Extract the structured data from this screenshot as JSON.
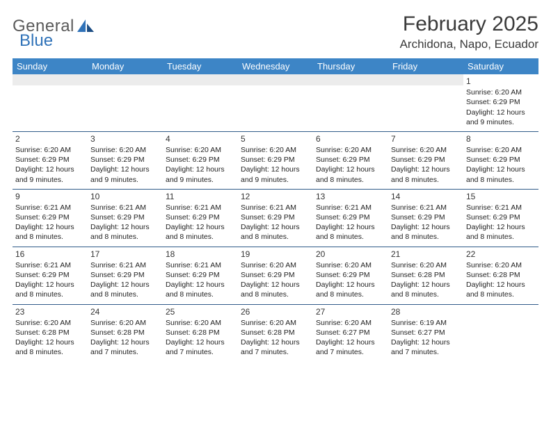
{
  "logo": {
    "word1": "General",
    "word2": "Blue"
  },
  "title": "February 2025",
  "location": "Archidona, Napo, Ecuador",
  "colors": {
    "header_bg": "#3d85c6",
    "header_text": "#ffffff",
    "rule": "#2f5a88",
    "gray_band": "#ececec",
    "logo_gray": "#5a5a5a",
    "logo_blue": "#2f72b8"
  },
  "weekday_labels": [
    "Sunday",
    "Monday",
    "Tuesday",
    "Wednesday",
    "Thursday",
    "Friday",
    "Saturday"
  ],
  "weeks": [
    [
      null,
      null,
      null,
      null,
      null,
      null,
      {
        "n": "1",
        "sr": "6:20 AM",
        "ss": "6:29 PM",
        "d": "12 hours and 9 minutes."
      }
    ],
    [
      {
        "n": "2",
        "sr": "6:20 AM",
        "ss": "6:29 PM",
        "d": "12 hours and 9 minutes."
      },
      {
        "n": "3",
        "sr": "6:20 AM",
        "ss": "6:29 PM",
        "d": "12 hours and 9 minutes."
      },
      {
        "n": "4",
        "sr": "6:20 AM",
        "ss": "6:29 PM",
        "d": "12 hours and 9 minutes."
      },
      {
        "n": "5",
        "sr": "6:20 AM",
        "ss": "6:29 PM",
        "d": "12 hours and 9 minutes."
      },
      {
        "n": "6",
        "sr": "6:20 AM",
        "ss": "6:29 PM",
        "d": "12 hours and 8 minutes."
      },
      {
        "n": "7",
        "sr": "6:20 AM",
        "ss": "6:29 PM",
        "d": "12 hours and 8 minutes."
      },
      {
        "n": "8",
        "sr": "6:20 AM",
        "ss": "6:29 PM",
        "d": "12 hours and 8 minutes."
      }
    ],
    [
      {
        "n": "9",
        "sr": "6:21 AM",
        "ss": "6:29 PM",
        "d": "12 hours and 8 minutes."
      },
      {
        "n": "10",
        "sr": "6:21 AM",
        "ss": "6:29 PM",
        "d": "12 hours and 8 minutes."
      },
      {
        "n": "11",
        "sr": "6:21 AM",
        "ss": "6:29 PM",
        "d": "12 hours and 8 minutes."
      },
      {
        "n": "12",
        "sr": "6:21 AM",
        "ss": "6:29 PM",
        "d": "12 hours and 8 minutes."
      },
      {
        "n": "13",
        "sr": "6:21 AM",
        "ss": "6:29 PM",
        "d": "12 hours and 8 minutes."
      },
      {
        "n": "14",
        "sr": "6:21 AM",
        "ss": "6:29 PM",
        "d": "12 hours and 8 minutes."
      },
      {
        "n": "15",
        "sr": "6:21 AM",
        "ss": "6:29 PM",
        "d": "12 hours and 8 minutes."
      }
    ],
    [
      {
        "n": "16",
        "sr": "6:21 AM",
        "ss": "6:29 PM",
        "d": "12 hours and 8 minutes."
      },
      {
        "n": "17",
        "sr": "6:21 AM",
        "ss": "6:29 PM",
        "d": "12 hours and 8 minutes."
      },
      {
        "n": "18",
        "sr": "6:21 AM",
        "ss": "6:29 PM",
        "d": "12 hours and 8 minutes."
      },
      {
        "n": "19",
        "sr": "6:20 AM",
        "ss": "6:29 PM",
        "d": "12 hours and 8 minutes."
      },
      {
        "n": "20",
        "sr": "6:20 AM",
        "ss": "6:29 PM",
        "d": "12 hours and 8 minutes."
      },
      {
        "n": "21",
        "sr": "6:20 AM",
        "ss": "6:28 PM",
        "d": "12 hours and 8 minutes."
      },
      {
        "n": "22",
        "sr": "6:20 AM",
        "ss": "6:28 PM",
        "d": "12 hours and 8 minutes."
      }
    ],
    [
      {
        "n": "23",
        "sr": "6:20 AM",
        "ss": "6:28 PM",
        "d": "12 hours and 8 minutes."
      },
      {
        "n": "24",
        "sr": "6:20 AM",
        "ss": "6:28 PM",
        "d": "12 hours and 7 minutes."
      },
      {
        "n": "25",
        "sr": "6:20 AM",
        "ss": "6:28 PM",
        "d": "12 hours and 7 minutes."
      },
      {
        "n": "26",
        "sr": "6:20 AM",
        "ss": "6:28 PM",
        "d": "12 hours and 7 minutes."
      },
      {
        "n": "27",
        "sr": "6:20 AM",
        "ss": "6:27 PM",
        "d": "12 hours and 7 minutes."
      },
      {
        "n": "28",
        "sr": "6:19 AM",
        "ss": "6:27 PM",
        "d": "12 hours and 7 minutes."
      },
      null
    ]
  ],
  "labels": {
    "sunrise": "Sunrise:",
    "sunset": "Sunset:",
    "daylight": "Daylight:"
  }
}
